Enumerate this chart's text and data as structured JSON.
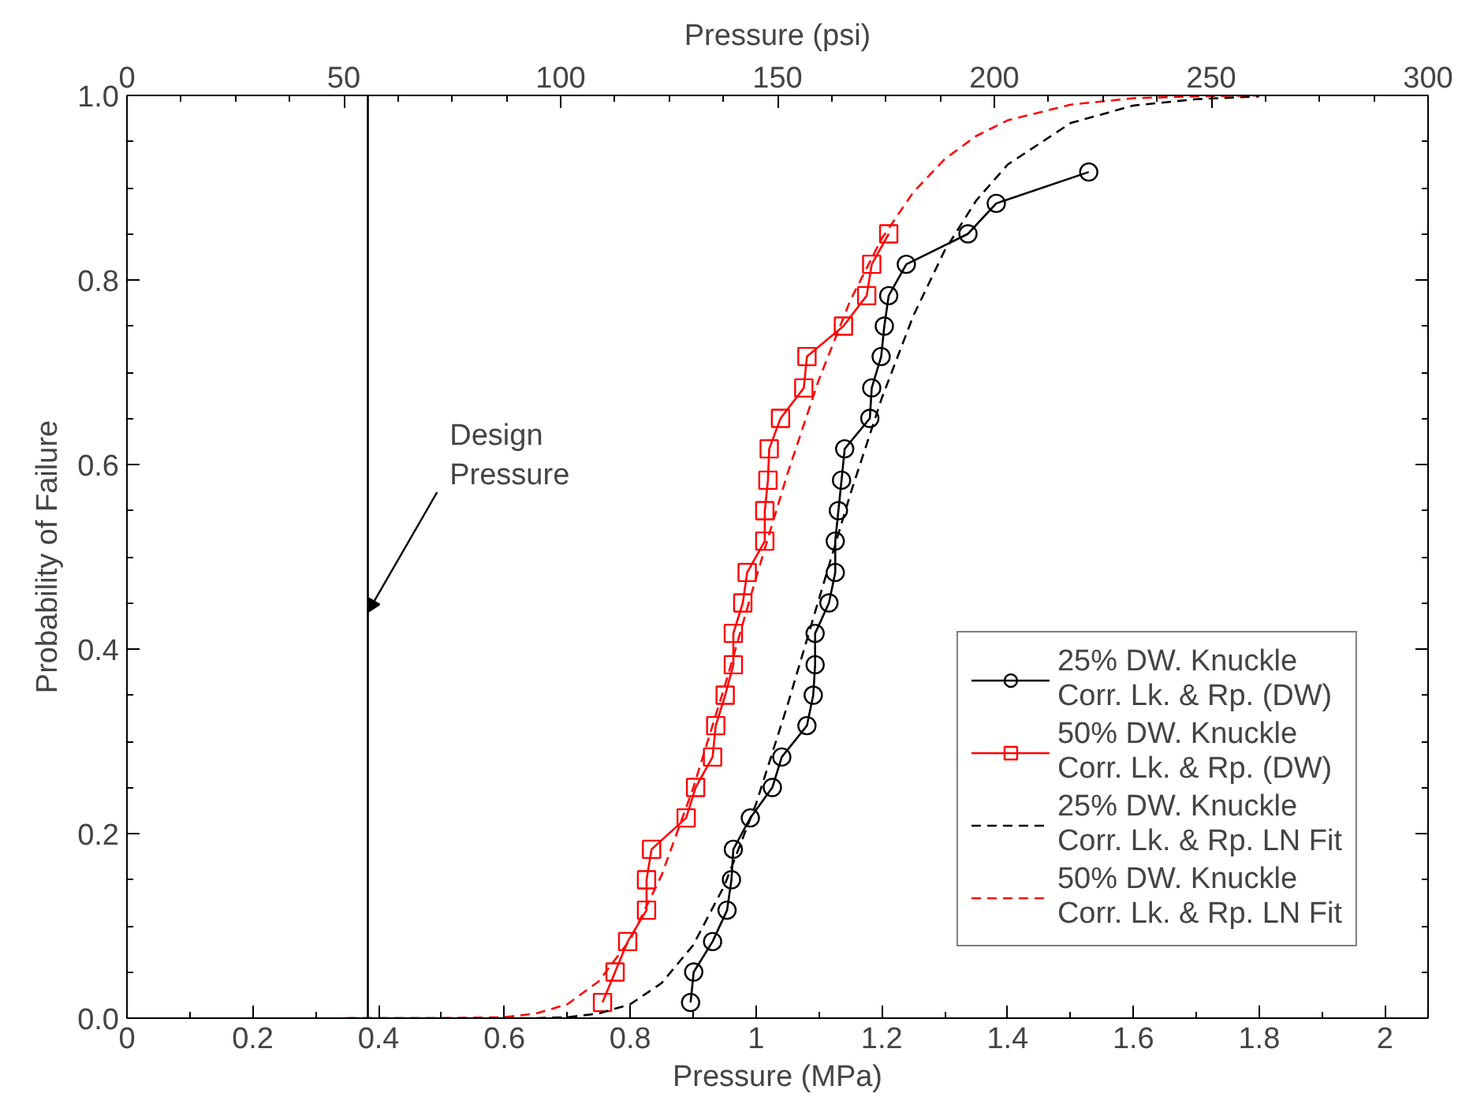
{
  "chart_data": {
    "type": "line",
    "xlabel": "Pressure (MPa)",
    "ylabel": "Probability of Failure",
    "x2label": "Pressure (psi)",
    "xlim": [
      0,
      2.0684
    ],
    "ylim": [
      0,
      1
    ],
    "xticks": [
      0,
      0.2,
      0.4,
      0.6,
      0.8,
      1,
      1.2,
      1.4,
      1.6,
      1.8,
      2
    ],
    "yticks": [
      {
        "value": 0,
        "label": "0.0"
      },
      {
        "value": 0.2,
        "label": "0.2"
      },
      {
        "value": 0.4,
        "label": "0.4"
      },
      {
        "value": 0.6,
        "label": "0.6"
      },
      {
        "value": 0.8,
        "label": "0.8"
      },
      {
        "value": 1,
        "label": "1.0"
      }
    ],
    "x2lim": [
      0,
      300
    ],
    "x2ticks": [
      0,
      50,
      100,
      150,
      200,
      250,
      300
    ],
    "grid": false,
    "legend": "bottom right",
    "ref_lines": [
      {
        "axis": "x",
        "value": 0.383,
        "label": "Design\nPressure",
        "color": "#000000"
      }
    ],
    "series": [
      {
        "name": "25% DW. Knuckle\nCorr. Lk. & Rp. (DW)",
        "color": "#000000",
        "marker": "circle",
        "line_style": "solid",
        "x": [
          0.896,
          0.901,
          0.931,
          0.954,
          0.961,
          0.964,
          0.991,
          1.026,
          1.041,
          1.081,
          1.091,
          1.094,
          1.094,
          1.116,
          1.126,
          1.126,
          1.131,
          1.136,
          1.141,
          1.181,
          1.184,
          1.199,
          1.204,
          1.211,
          1.239,
          1.337,
          1.382,
          1.529
        ],
        "values": [
          0.017,
          0.05,
          0.083,
          0.117,
          0.15,
          0.183,
          0.217,
          0.25,
          0.283,
          0.317,
          0.35,
          0.383,
          0.417,
          0.45,
          0.483,
          0.517,
          0.55,
          0.583,
          0.617,
          0.65,
          0.683,
          0.717,
          0.75,
          0.783,
          0.817,
          0.85,
          0.883,
          0.917
        ]
      },
      {
        "name": "50% DW. Knuckle\nCorr. Lk. & Rp. (DW)",
        "color": "#ff0000",
        "marker": "square",
        "line_style": "solid",
        "x": [
          0.756,
          0.776,
          0.796,
          0.826,
          0.826,
          0.834,
          0.889,
          0.904,
          0.931,
          0.936,
          0.951,
          0.964,
          0.964,
          0.979,
          0.986,
          1.014,
          1.014,
          1.019,
          1.021,
          1.039,
          1.076,
          1.081,
          1.139,
          1.176,
          1.184,
          1.211
        ],
        "values": [
          0.017,
          0.05,
          0.083,
          0.117,
          0.15,
          0.183,
          0.217,
          0.25,
          0.283,
          0.317,
          0.35,
          0.383,
          0.417,
          0.45,
          0.483,
          0.517,
          0.55,
          0.583,
          0.617,
          0.65,
          0.683,
          0.717,
          0.75,
          0.783,
          0.817,
          0.85
        ]
      },
      {
        "name": "25% DW. Knuckle\nCorr. Lk. & Rp. LN Fit",
        "color": "#000000",
        "marker": "none",
        "line_style": "dashed",
        "x": [
          0.35,
          0.5,
          0.6,
          0.65,
          0.7,
          0.75,
          0.8,
          0.85,
          0.9,
          0.95,
          1.0,
          1.05,
          1.1,
          1.15,
          1.2,
          1.25,
          1.3,
          1.35,
          1.4,
          1.5,
          1.6,
          1.7,
          1.8
        ],
        "values": [
          0,
          0,
          0,
          0,
          0.001,
          0.005,
          0.015,
          0.038,
          0.079,
          0.144,
          0.232,
          0.339,
          0.454,
          0.568,
          0.672,
          0.761,
          0.832,
          0.886,
          0.925,
          0.97,
          0.989,
          0.996,
          0.999
        ]
      },
      {
        "name": "50% DW. Knuckle\nCorr. Lk. & Rp. LN Fit",
        "color": "#ff0000",
        "marker": "none",
        "line_style": "dashed",
        "x": [
          0.35,
          0.5,
          0.6,
          0.65,
          0.7,
          0.75,
          0.8,
          0.85,
          0.9,
          0.95,
          1.0,
          1.05,
          1.1,
          1.15,
          1.2,
          1.25,
          1.3,
          1.35,
          1.4,
          1.5,
          1.6,
          1.7,
          1.8
        ],
        "values": [
          0,
          0,
          0.001,
          0.005,
          0.015,
          0.04,
          0.085,
          0.155,
          0.249,
          0.359,
          0.477,
          0.59,
          0.692,
          0.778,
          0.845,
          0.895,
          0.931,
          0.956,
          0.973,
          0.99,
          0.997,
          0.999,
          1.0
        ]
      }
    ]
  }
}
